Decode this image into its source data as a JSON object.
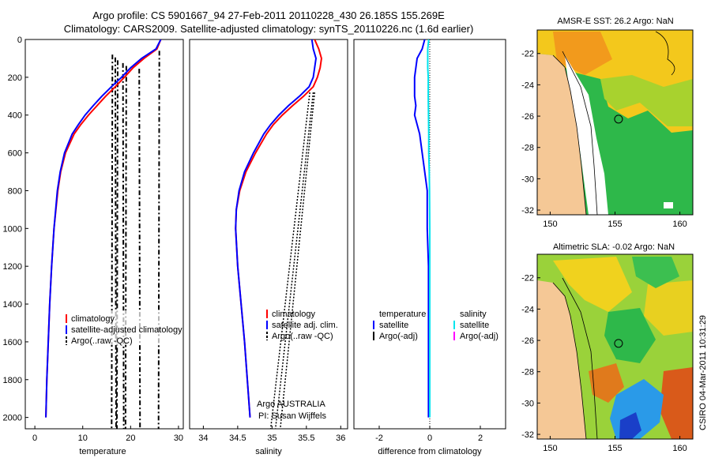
{
  "title": {
    "line1": "Argo profile: CS 5901667_94 27-Feb-2011 20110228_430 26.185S 155.269E",
    "line2": "Climatology: CARS2009. Satellite-adjusted climatology: synTS_20110226.nc (1.6d earlier)"
  },
  "colors": {
    "climatology": "#ff0000",
    "satellite": "#0000ff",
    "argo": "#000000",
    "satellite_salinity": "#00e5ee",
    "argo_adj_salinity": "#ff00ff",
    "land": "#f5c896",
    "sea_warm": "#f7d31a",
    "sea_green": "#2eb84a"
  },
  "chart_data": [
    {
      "type": "line",
      "name": "temperature-panel",
      "xlabel": "temperature",
      "ylabel": "",
      "xlim": [
        -2,
        31
      ],
      "ylim": [
        2060,
        0
      ],
      "xticks": [
        0,
        10,
        20,
        30
      ],
      "yticks": [
        0,
        200,
        400,
        600,
        800,
        1000,
        1200,
        1400,
        1600,
        1800,
        2000
      ],
      "legend": [
        "climatology",
        "satellite-adjusted climatology",
        "Argo(..raw -QC)"
      ],
      "series": [
        {
          "name": "climatology",
          "depth": [
            0,
            50,
            100,
            150,
            200,
            250,
            300,
            350,
            400,
            450,
            500,
            600,
            700,
            800,
            1000,
            1200,
            1400,
            1600,
            1800,
            2000
          ],
          "values": [
            26.3,
            25.5,
            22.8,
            20.5,
            18.7,
            16.8,
            14.8,
            13.0,
            11.2,
            9.6,
            8.2,
            6.4,
            5.4,
            4.8,
            4.0,
            3.5,
            3.1,
            2.8,
            2.5,
            2.3
          ]
        },
        {
          "name": "satellite",
          "depth": [
            0,
            50,
            100,
            150,
            200,
            250,
            300,
            350,
            400,
            450,
            500,
            600,
            700,
            800,
            1000,
            1200,
            1400,
            1600,
            1800,
            2000
          ],
          "values": [
            26.3,
            25.3,
            22.3,
            20.0,
            18.1,
            16.0,
            14.0,
            12.2,
            10.5,
            9.1,
            7.8,
            6.2,
            5.3,
            4.7,
            4.0,
            3.5,
            3.1,
            2.8,
            2.5,
            2.3
          ]
        }
      ],
      "argo_lines": [
        16.2,
        16.8,
        17.3,
        18.4,
        19.1,
        21.8,
        26.0
      ]
    },
    {
      "type": "line",
      "name": "salinity-panel",
      "xlabel": "salinity",
      "xlim": [
        33.8,
        36.1
      ],
      "ylim": [
        2060,
        0
      ],
      "xticks": [
        34,
        34.5,
        35,
        35.5,
        36
      ],
      "legend": [
        "climatology",
        "satellite adj. clim.",
        "Argo(..raw -QC)"
      ],
      "annotation": [
        "Argo AUSTRALIA",
        "PI: Susan Wijffels"
      ],
      "series": [
        {
          "name": "climatology",
          "depth": [
            0,
            50,
            100,
            150,
            200,
            250,
            300,
            350,
            400,
            450,
            500,
            600,
            700,
            800,
            900,
            1000,
            1200,
            1400,
            1600,
            1800,
            2000
          ],
          "values": [
            35.62,
            35.68,
            35.72,
            35.7,
            35.66,
            35.6,
            35.46,
            35.3,
            35.15,
            35.02,
            34.92,
            34.76,
            34.62,
            34.53,
            34.48,
            34.47,
            34.5,
            34.55,
            34.6,
            34.64,
            34.68
          ]
        },
        {
          "name": "satellite",
          "depth": [
            0,
            50,
            100,
            150,
            200,
            250,
            300,
            350,
            400,
            450,
            500,
            600,
            700,
            800,
            900,
            1000,
            1200,
            1400,
            1600,
            1800,
            2000
          ],
          "values": [
            35.58,
            35.6,
            35.64,
            35.62,
            35.6,
            35.54,
            35.4,
            35.24,
            35.1,
            34.98,
            34.88,
            34.73,
            34.6,
            34.52,
            34.48,
            34.47,
            34.5,
            34.55,
            34.6,
            34.64,
            34.68
          ]
        }
      ]
    },
    {
      "type": "line",
      "name": "difference-panel",
      "xlabel": "difference from climatology",
      "xlim": [
        -3,
        3
      ],
      "ylim": [
        2060,
        0
      ],
      "xticks": [
        -2,
        0,
        2
      ],
      "legend_titles": [
        "temperature",
        "salinity"
      ],
      "legend": [
        "satellite",
        "Argo(-adj)",
        "satellite",
        "Argo(-adj)"
      ],
      "series": [
        {
          "name": "temperature satellite",
          "depth": [
            0,
            50,
            100,
            150,
            200,
            250,
            300,
            350,
            400,
            500,
            600,
            700,
            800,
            1000,
            1200,
            1400,
            1600,
            1800,
            2000
          ],
          "values": [
            -0.2,
            -0.3,
            -0.5,
            -0.55,
            -0.6,
            -0.6,
            -0.6,
            -0.55,
            -0.6,
            -0.4,
            -0.3,
            -0.2,
            -0.1,
            -0.1,
            -0.05,
            -0.05,
            -0.05,
            -0.05,
            -0.05
          ]
        },
        {
          "name": "salinity satellite",
          "depth": [
            0,
            50,
            100,
            150,
            200,
            300,
            400,
            500,
            600,
            700,
            800,
            1000,
            1200,
            1400,
            1600,
            1800,
            2000
          ],
          "values": [
            -0.04,
            -0.08,
            -0.08,
            -0.08,
            -0.06,
            -0.06,
            -0.05,
            -0.04,
            -0.04,
            -0.02,
            -0.01,
            0,
            0,
            0,
            0,
            0,
            0
          ]
        }
      ]
    },
    {
      "type": "heatmap",
      "name": "sst-map",
      "title": "AMSR-E SST: 26.2 Argo: NaN",
      "xticks": [
        150,
        155,
        160
      ],
      "yticks": [
        -22,
        -24,
        -26,
        -28,
        -30,
        -32
      ],
      "xlim": [
        149,
        161
      ],
      "ylim": [
        -32.3,
        -20.5
      ],
      "marker": [
        155.27,
        -26.19
      ]
    },
    {
      "type": "heatmap",
      "name": "sla-map",
      "title": "Altimetric SLA: -0.02 Argo: NaN",
      "xticks": [
        150,
        155,
        160
      ],
      "yticks": [
        -22,
        -24,
        -26,
        -28,
        -30,
        -32
      ],
      "xlim": [
        149,
        161
      ],
      "ylim": [
        -32.3,
        -20.5
      ],
      "marker": [
        155.27,
        -26.19
      ]
    }
  ],
  "side_label": "CSIRO 04-Mar-2011 10:31:29"
}
